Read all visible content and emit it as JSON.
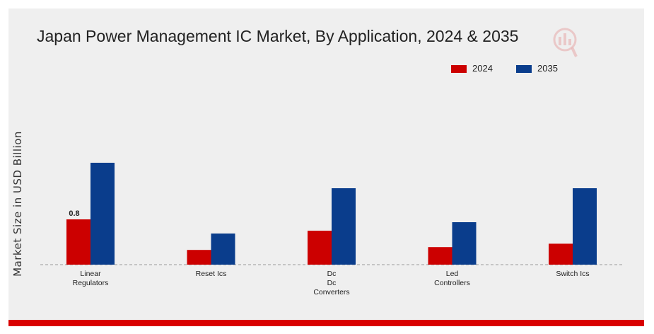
{
  "colors": {
    "series_2024": "#cc0000",
    "series_2035": "#0a3d8c",
    "accent": "#d90000"
  },
  "watermark_icon": "market-research-logo-icon",
  "chart_data": {
    "type": "bar",
    "title": "Japan Power Management IC Market, By Application, 2024 & 2035",
    "ylabel": "Market Size in USD Billion",
    "xlabel": "",
    "categories": [
      [
        "Linear",
        "Regulators"
      ],
      [
        "Reset Ics"
      ],
      [
        "Dc",
        "Dc",
        "Converters"
      ],
      [
        "Led",
        "Controllers"
      ],
      [
        "Switch Ics"
      ]
    ],
    "series": [
      {
        "name": "2024",
        "color": "#cc0000",
        "values": [
          0.8,
          0.26,
          0.6,
          0.31,
          0.37
        ]
      },
      {
        "name": "2035",
        "color": "#0a3d8c",
        "values": [
          1.8,
          0.55,
          1.35,
          0.75,
          1.35
        ]
      }
    ],
    "data_labels": [
      {
        "series": 0,
        "index": 0,
        "text": "0.8"
      }
    ],
    "ylim": [
      0,
      2.0
    ],
    "y_ticks_shown": false,
    "grid": false,
    "baseline": "dashed",
    "legend_position": "top-right"
  }
}
